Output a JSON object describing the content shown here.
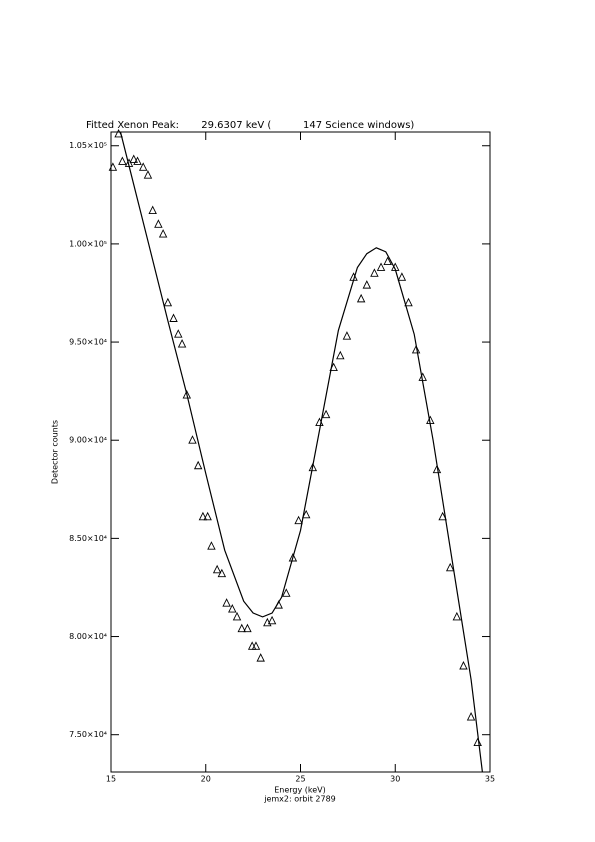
{
  "chart_data": {
    "type": "scatter",
    "title": "Fitted Xenon Peak:       29.6307 keV (          147 Science windows)",
    "x_label": "Energy (keV)",
    "subtitle": "jemx2: orbit 2789",
    "y_label": "Detector counts",
    "color": "#000000",
    "xlim": [
      15,
      35
    ],
    "xticks": [
      15,
      20,
      25,
      30,
      35
    ],
    "ylim": [
      73100,
      105700
    ],
    "yticks": [
      {
        "value": 75000,
        "label": "7.50×10⁴"
      },
      {
        "value": 80000,
        "label": "8.00×10⁴"
      },
      {
        "value": 85000,
        "label": "8.50×10⁴"
      },
      {
        "value": 90000,
        "label": "9.00×10⁴"
      },
      {
        "value": 95000,
        "label": "9.50×10⁴"
      },
      {
        "value": 100000,
        "label": "1.00×10⁵"
      },
      {
        "value": 105000,
        "label": "1.05×10⁵"
      }
    ],
    "points": {
      "x": [
        15.1,
        15.4,
        15.6,
        15.95,
        16.2,
        16.4,
        16.7,
        16.95,
        17.2,
        17.5,
        17.75,
        18.0,
        18.3,
        18.55,
        18.75,
        19.0,
        19.3,
        19.6,
        19.85,
        20.1,
        20.3,
        20.6,
        20.85,
        21.1,
        21.4,
        21.65,
        21.9,
        22.2,
        22.45,
        22.65,
        22.9,
        23.25,
        23.5,
        23.85,
        24.25,
        24.6,
        24.9,
        25.3,
        25.65,
        26.0,
        26.35,
        26.75,
        27.1,
        27.45,
        27.8,
        28.2,
        28.5,
        28.9,
        29.25,
        29.6,
        30.0,
        30.35,
        30.7,
        31.1,
        31.45,
        31.85,
        32.2,
        32.5,
        32.9,
        33.25,
        33.6,
        34.0,
        34.35
      ],
      "values": [
        103900,
        105600,
        104200,
        104100,
        104300,
        104200,
        103900,
        103500,
        101700,
        101000,
        100500,
        97000,
        96200,
        95400,
        94900,
        92300,
        90000,
        88700,
        86100,
        86100,
        84600,
        83400,
        83200,
        81700,
        81400,
        81000,
        80400,
        80400,
        79500,
        79500,
        78900,
        80700,
        80800,
        81600,
        82200,
        84000,
        85900,
        86200,
        88600,
        90900,
        91300,
        93700,
        94300,
        95300,
        98300,
        97200,
        97900,
        98500,
        98800,
        99100,
        98800,
        98300,
        97000,
        94600,
        93200,
        91000,
        88500,
        86100,
        83500,
        81000,
        78500,
        75900,
        74600
      ]
    },
    "fit": {
      "x": [
        15.5,
        16,
        17,
        18,
        19,
        20,
        21,
        22,
        22.5,
        23,
        23.5,
        24,
        25,
        26,
        27,
        28,
        28.5,
        29,
        29.5,
        30,
        31,
        32,
        33,
        34,
        34.6
      ],
      "values": [
        105700,
        103800,
        99950,
        96100,
        92350,
        88300,
        84400,
        81800,
        81200,
        81000,
        81200,
        82000,
        85400,
        90500,
        95600,
        98800,
        99500,
        99800,
        99600,
        98700,
        95400,
        90000,
        83900,
        77800,
        73100
      ]
    }
  }
}
